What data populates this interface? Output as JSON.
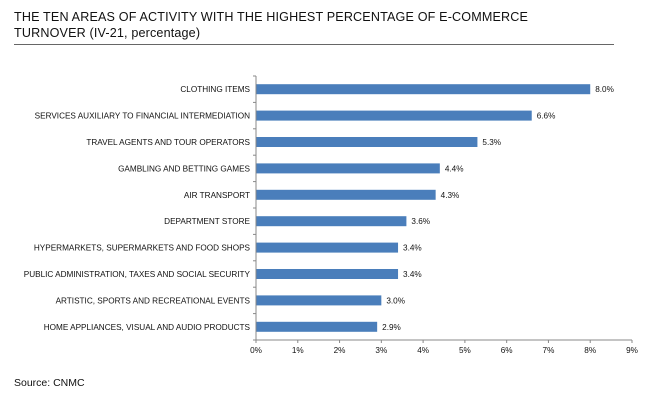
{
  "title_line1": "THE TEN AREAS OF ACTIVITY WITH THE HIGHEST PERCENTAGE OF E-COMMERCE",
  "title_line2": "TURNOVER (IV-21, percentage)",
  "source": "Source: CNMC",
  "chart_data": {
    "type": "bar",
    "orientation": "horizontal",
    "categories": [
      "CLOTHING ITEMS",
      "SERVICES AUXILIARY TO FINANCIAL INTERMEDIATION",
      "TRAVEL AGENTS AND TOUR OPERATORS",
      "GAMBLING AND BETTING GAMES",
      "AIR TRANSPORT",
      "DEPARTMENT STORE",
      "HYPERMARKETS, SUPERMARKETS AND FOOD SHOPS",
      "PUBLIC ADMINISTRATION, TAXES AND SOCIAL SECURITY",
      "ARTISTIC, SPORTS AND RECREATIONAL EVENTS",
      "HOME APPLIANCES, VISUAL AND AUDIO PRODUCTS"
    ],
    "values": [
      8.0,
      6.6,
      5.3,
      4.4,
      4.3,
      3.6,
      3.4,
      3.4,
      3.0,
      2.9
    ],
    "data_labels": [
      "8.0%",
      "6.6%",
      "5.3%",
      "4.4%",
      "4.3%",
      "3.6%",
      "3.4%",
      "3.4%",
      "3.0%",
      "2.9%"
    ],
    "x_ticks": [
      "0%",
      "1%",
      "2%",
      "3%",
      "4%",
      "5%",
      "6%",
      "7%",
      "8%",
      "9%"
    ],
    "xlim": [
      0,
      9
    ],
    "grid": false,
    "bar_color": "#4a7ebb"
  }
}
